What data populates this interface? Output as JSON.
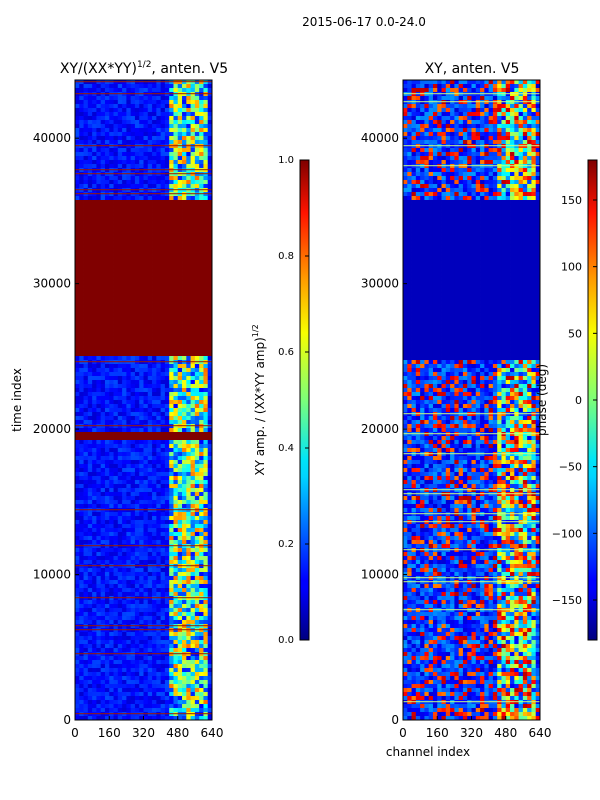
{
  "suptitle": "2015-06-17 0.0-24.0",
  "chart_data": [
    {
      "type": "heatmap",
      "title_main": "XY/(XX*YY)",
      "title_exp": "1/2",
      "title_tail": ", anten. V5",
      "xlabel": "",
      "ylabel": "time index",
      "xlim": [
        0,
        640
      ],
      "ylim": [
        0,
        44000
      ],
      "xticks": [
        0,
        160,
        320,
        480,
        640
      ],
      "yticks": [
        0,
        10000,
        20000,
        30000,
        40000
      ],
      "colorbar": {
        "label_main": "XY amp. / (XX*YY amp)",
        "label_exp": "1/2",
        "range": [
          0.0,
          1.0
        ],
        "ticks": [
          "0.0",
          "0.2",
          "0.4",
          "0.6",
          "0.8",
          "1.0"
        ],
        "colormap": "jet"
      },
      "saturated_time_blocks": [
        [
          25000,
          35800
        ],
        [
          19200,
          19700
        ]
      ]
    },
    {
      "type": "heatmap",
      "title_main": "XY, anten. V5",
      "xlabel": "channel index",
      "ylabel": "",
      "xlim": [
        0,
        640
      ],
      "ylim": [
        0,
        44000
      ],
      "xticks": [
        0,
        160,
        320,
        480,
        640
      ],
      "yticks": [
        0,
        10000,
        20000,
        30000,
        40000
      ],
      "colorbar": {
        "label_main": "phase (deg)",
        "range": [
          -180,
          180
        ],
        "ticks": [
          "150",
          "100",
          "50",
          "0",
          "−50",
          "−100",
          "−150"
        ],
        "colormap": "jet"
      },
      "uniform_time_blocks": [
        [
          24800,
          35800
        ]
      ]
    }
  ]
}
